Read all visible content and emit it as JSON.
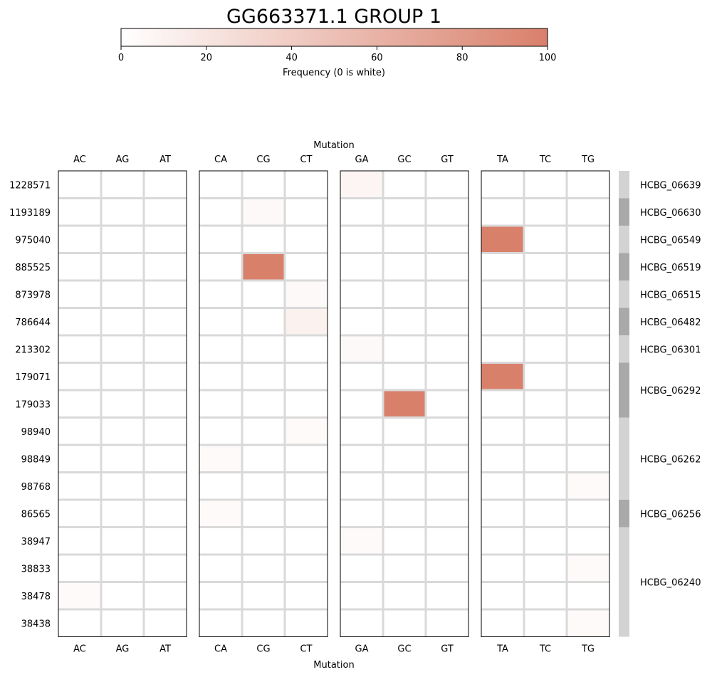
{
  "chart_data": {
    "type": "heatmap",
    "title": "GG663371.1 GROUP 1",
    "colorbar": {
      "label": "Frequency (0 is white)",
      "range": [
        0,
        100
      ],
      "ticks": [
        0,
        20,
        40,
        60,
        80,
        100
      ],
      "color_low": "#ffffff",
      "color_high": "#d9806b"
    },
    "xlabel": "Mutation",
    "panels": [
      [
        "AC",
        "AG",
        "AT"
      ],
      [
        "CA",
        "CG",
        "CT"
      ],
      [
        "GA",
        "GC",
        "GT"
      ],
      [
        "TA",
        "TC",
        "TG"
      ]
    ],
    "rows": [
      "1228571",
      "1193189",
      "975040",
      "885525",
      "873978",
      "786644",
      "213302",
      "179071",
      "179033",
      "98940",
      "98849",
      "98768",
      "86565",
      "38947",
      "38833",
      "38478",
      "38438"
    ],
    "values": [
      {
        "row": "1228571",
        "col": "GA",
        "value": 8
      },
      {
        "row": "1193189",
        "col": "CG",
        "value": 5
      },
      {
        "row": "975040",
        "col": "TA",
        "value": 100
      },
      {
        "row": "885525",
        "col": "CG",
        "value": 100
      },
      {
        "row": "873978",
        "col": "CT",
        "value": 5
      },
      {
        "row": "786644",
        "col": "CT",
        "value": 10
      },
      {
        "row": "213302",
        "col": "GA",
        "value": 5
      },
      {
        "row": "179071",
        "col": "TA",
        "value": 100
      },
      {
        "row": "179033",
        "col": "GC",
        "value": 100
      },
      {
        "row": "98940",
        "col": "CT",
        "value": 4
      },
      {
        "row": "98849",
        "col": "CA",
        "value": 4
      },
      {
        "row": "98768",
        "col": "TG",
        "value": 4
      },
      {
        "row": "86565",
        "col": "CA",
        "value": 4
      },
      {
        "row": "38947",
        "col": "GA",
        "value": 4
      },
      {
        "row": "38833",
        "col": "TG",
        "value": 4
      },
      {
        "row": "38478",
        "col": "AC",
        "value": 4
      },
      {
        "row": "38438",
        "col": "TG",
        "value": 4
      }
    ],
    "gene_groups": [
      {
        "label": "HCBG_06639",
        "rows": [
          "1228571"
        ],
        "shade": "#d3d3d3"
      },
      {
        "label": "HCBG_06630",
        "rows": [
          "1193189"
        ],
        "shade": "#a9a9a9"
      },
      {
        "label": "HCBG_06549",
        "rows": [
          "975040"
        ],
        "shade": "#d3d3d3"
      },
      {
        "label": "HCBG_06519",
        "rows": [
          "885525"
        ],
        "shade": "#a9a9a9"
      },
      {
        "label": "HCBG_06515",
        "rows": [
          "873978"
        ],
        "shade": "#d3d3d3"
      },
      {
        "label": "HCBG_06482",
        "rows": [
          "786644"
        ],
        "shade": "#a9a9a9"
      },
      {
        "label": "HCBG_06301",
        "rows": [
          "213302"
        ],
        "shade": "#d3d3d3"
      },
      {
        "label": "HCBG_06292",
        "rows": [
          "179071",
          "179033"
        ],
        "shade": "#a9a9a9"
      },
      {
        "label": "HCBG_06262",
        "rows": [
          "98940",
          "98849",
          "98768"
        ],
        "shade": "#d3d3d3"
      },
      {
        "label": "HCBG_06256",
        "rows": [
          "86565"
        ],
        "shade": "#a9a9a9"
      },
      {
        "label": "HCBG_06240",
        "rows": [
          "38947",
          "38833",
          "38478",
          "38438"
        ],
        "shade": "#d3d3d3"
      }
    ],
    "grid": true,
    "grid_color": "#d9d9d9"
  }
}
